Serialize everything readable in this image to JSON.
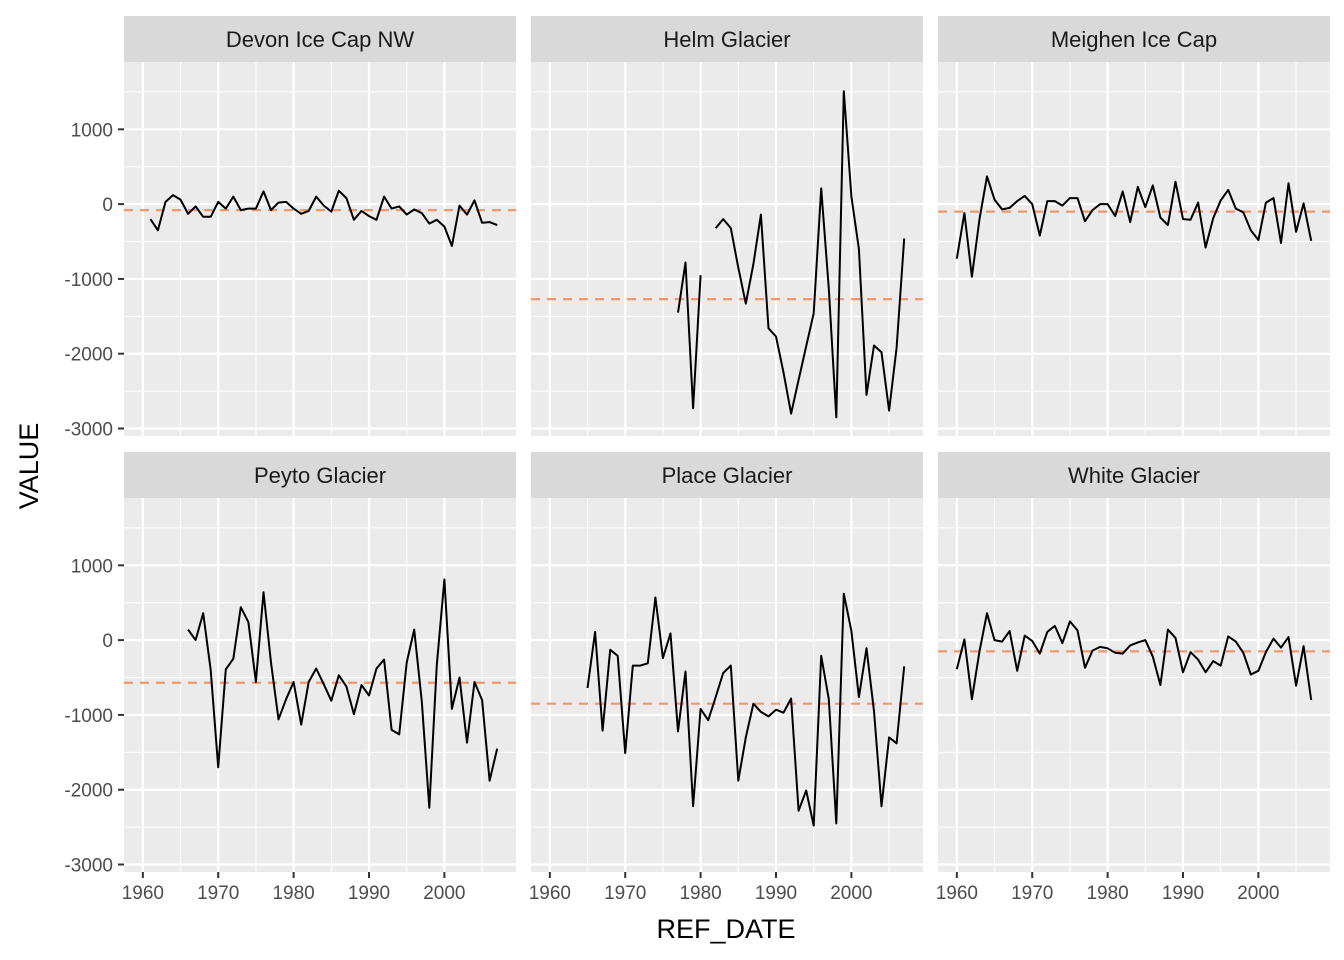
{
  "chart_data": {
    "type": "line",
    "xlabel": "REF_DATE",
    "ylabel": "VALUE",
    "xlim": [
      1957.5,
      2009.5
    ],
    "ylim": [
      -3100,
      1900
    ],
    "x_ticks": [
      1960,
      1970,
      1980,
      1990,
      2000
    ],
    "y_ticks": [
      1000,
      0,
      -1000,
      -2000,
      -3000
    ],
    "grid": true,
    "mean_line_color": "#f4956c",
    "line_color": "#000000",
    "panel_background": "#ebebeb",
    "strip_background": "#d9d9d9",
    "panels": [
      {
        "name": "Devon Ice Cap NW",
        "mean": -80,
        "series": [
          [
            1961,
            -200
          ],
          [
            1962,
            -350
          ],
          [
            1963,
            30
          ],
          [
            1964,
            120
          ],
          [
            1965,
            60
          ],
          [
            1966,
            -130
          ],
          [
            1967,
            -30
          ],
          [
            1968,
            -170
          ],
          [
            1969,
            -170
          ],
          [
            1970,
            30
          ],
          [
            1971,
            -60
          ],
          [
            1972,
            100
          ],
          [
            1973,
            -80
          ],
          [
            1974,
            -60
          ],
          [
            1975,
            -60
          ],
          [
            1976,
            170
          ],
          [
            1977,
            -80
          ],
          [
            1978,
            20
          ],
          [
            1979,
            30
          ],
          [
            1980,
            -60
          ],
          [
            1981,
            -130
          ],
          [
            1982,
            -90
          ],
          [
            1983,
            100
          ],
          [
            1984,
            -20
          ],
          [
            1985,
            -100
          ],
          [
            1986,
            180
          ],
          [
            1987,
            80
          ],
          [
            1988,
            -210
          ],
          [
            1989,
            -90
          ],
          [
            1990,
            -160
          ],
          [
            1991,
            -210
          ],
          [
            1992,
            100
          ],
          [
            1993,
            -60
          ],
          [
            1994,
            -30
          ],
          [
            1995,
            -140
          ],
          [
            1996,
            -70
          ],
          [
            1997,
            -120
          ],
          [
            1998,
            -260
          ],
          [
            1999,
            -210
          ],
          [
            2000,
            -300
          ],
          [
            2001,
            -560
          ],
          [
            2002,
            -20
          ],
          [
            2003,
            -140
          ],
          [
            2004,
            50
          ],
          [
            2005,
            -250
          ],
          [
            2006,
            -240
          ],
          [
            2007,
            -280
          ]
        ]
      },
      {
        "name": "Helm Glacier",
        "mean": -1270,
        "series": [
          [
            1977,
            -1450
          ],
          [
            1978,
            -780
          ],
          [
            1979,
            -2730
          ],
          [
            1980,
            -950
          ],
          null,
          [
            1982,
            -320
          ],
          [
            1983,
            -200
          ],
          [
            1984,
            -320
          ],
          [
            1985,
            -850
          ],
          [
            1986,
            -1330
          ],
          [
            1987,
            -800
          ],
          [
            1988,
            -140
          ],
          [
            1989,
            -1660
          ],
          [
            1990,
            -1770
          ],
          [
            1991,
            -2250
          ],
          [
            1992,
            -2800
          ],
          [
            1993,
            -2350
          ],
          [
            1994,
            -1900
          ],
          [
            1995,
            -1460
          ],
          [
            1996,
            210
          ],
          [
            1997,
            -1130
          ],
          [
            1998,
            -2850
          ],
          [
            1999,
            1510
          ],
          [
            2000,
            100
          ],
          [
            2001,
            -600
          ],
          [
            2002,
            -2550
          ],
          [
            2003,
            -1890
          ],
          [
            2004,
            -1980
          ],
          [
            2005,
            -2760
          ],
          [
            2006,
            -1920
          ],
          [
            2007,
            -460
          ]
        ]
      },
      {
        "name": "Meighen Ice Cap",
        "mean": -100,
        "series": [
          [
            1960,
            -730
          ],
          [
            1961,
            -120
          ],
          [
            1962,
            -970
          ],
          [
            1963,
            -200
          ],
          [
            1964,
            370
          ],
          [
            1965,
            60
          ],
          [
            1966,
            -70
          ],
          [
            1967,
            -50
          ],
          [
            1968,
            40
          ],
          [
            1969,
            110
          ],
          [
            1970,
            0
          ],
          [
            1971,
            -420
          ],
          [
            1972,
            40
          ],
          [
            1973,
            40
          ],
          [
            1974,
            -20
          ],
          [
            1975,
            80
          ],
          [
            1976,
            80
          ],
          [
            1977,
            -230
          ],
          [
            1978,
            -80
          ],
          [
            1979,
            0
          ],
          [
            1980,
            0
          ],
          [
            1981,
            -160
          ],
          [
            1982,
            170
          ],
          [
            1983,
            -240
          ],
          [
            1984,
            230
          ],
          [
            1985,
            -40
          ],
          [
            1986,
            250
          ],
          [
            1987,
            -180
          ],
          [
            1988,
            -280
          ],
          [
            1989,
            300
          ],
          [
            1990,
            -200
          ],
          [
            1991,
            -210
          ],
          [
            1992,
            20
          ],
          [
            1993,
            -580
          ],
          [
            1994,
            -190
          ],
          [
            1995,
            50
          ],
          [
            1996,
            190
          ],
          [
            1997,
            -60
          ],
          [
            1998,
            -110
          ],
          [
            1999,
            -350
          ],
          [
            2000,
            -480
          ],
          [
            2001,
            20
          ],
          [
            2002,
            80
          ],
          [
            2003,
            -520
          ],
          [
            2004,
            280
          ],
          [
            2005,
            -370
          ],
          [
            2006,
            10
          ],
          [
            2007,
            -490
          ]
        ]
      },
      {
        "name": "Peyto Glacier",
        "mean": -570,
        "series": [
          [
            1966,
            140
          ],
          [
            1967,
            0
          ],
          [
            1968,
            360
          ],
          [
            1969,
            -400
          ],
          [
            1970,
            -1700
          ],
          [
            1971,
            -390
          ],
          [
            1972,
            -250
          ],
          [
            1973,
            440
          ],
          [
            1974,
            240
          ],
          [
            1975,
            -560
          ],
          [
            1976,
            640
          ],
          [
            1977,
            -300
          ],
          [
            1978,
            -1060
          ],
          [
            1979,
            -790
          ],
          [
            1980,
            -560
          ],
          [
            1981,
            -1130
          ],
          [
            1982,
            -560
          ],
          [
            1983,
            -380
          ],
          [
            1984,
            -590
          ],
          [
            1985,
            -810
          ],
          [
            1986,
            -470
          ],
          [
            1987,
            -620
          ],
          [
            1988,
            -990
          ],
          [
            1989,
            -600
          ],
          [
            1990,
            -740
          ],
          [
            1991,
            -380
          ],
          [
            1992,
            -260
          ],
          [
            1993,
            -1200
          ],
          [
            1994,
            -1260
          ],
          [
            1995,
            -300
          ],
          [
            1996,
            140
          ],
          [
            1997,
            -820
          ],
          [
            1998,
            -2240
          ],
          [
            1999,
            -330
          ],
          [
            2000,
            810
          ],
          [
            2001,
            -920
          ],
          [
            2002,
            -500
          ],
          [
            2003,
            -1370
          ],
          [
            2004,
            -560
          ],
          [
            2005,
            -800
          ],
          [
            2006,
            -1880
          ],
          [
            2007,
            -1450
          ]
        ]
      },
      {
        "name": "Place Glacier",
        "mean": -850,
        "series": [
          [
            1965,
            -640
          ],
          [
            1966,
            110
          ],
          [
            1967,
            -1210
          ],
          [
            1968,
            -130
          ],
          [
            1969,
            -210
          ],
          [
            1970,
            -1510
          ],
          [
            1971,
            -340
          ],
          [
            1972,
            -340
          ],
          [
            1973,
            -310
          ],
          [
            1974,
            570
          ],
          [
            1975,
            -240
          ],
          [
            1976,
            90
          ],
          [
            1977,
            -1220
          ],
          [
            1978,
            -420
          ],
          [
            1979,
            -2220
          ],
          [
            1980,
            -920
          ],
          [
            1981,
            -1070
          ],
          [
            1982,
            -760
          ],
          [
            1983,
            -440
          ],
          [
            1984,
            -340
          ],
          [
            1985,
            -1880
          ],
          [
            1986,
            -1300
          ],
          [
            1987,
            -850
          ],
          [
            1988,
            -960
          ],
          [
            1989,
            -1020
          ],
          [
            1990,
            -930
          ],
          [
            1991,
            -970
          ],
          [
            1992,
            -780
          ],
          [
            1993,
            -2280
          ],
          [
            1994,
            -2010
          ],
          [
            1995,
            -2480
          ],
          [
            1996,
            -210
          ],
          [
            1997,
            -790
          ],
          [
            1998,
            -2450
          ],
          [
            1999,
            620
          ],
          [
            2000,
            120
          ],
          [
            2001,
            -760
          ],
          [
            2002,
            -110
          ],
          [
            2003,
            -950
          ],
          [
            2004,
            -2220
          ],
          [
            2005,
            -1300
          ],
          [
            2006,
            -1380
          ],
          [
            2007,
            -350
          ]
        ]
      },
      {
        "name": "White Glacier",
        "mean": -150,
        "series": [
          [
            1960,
            -390
          ],
          [
            1961,
            10
          ],
          [
            1962,
            -790
          ],
          [
            1963,
            -150
          ],
          [
            1964,
            360
          ],
          [
            1965,
            0
          ],
          [
            1966,
            -20
          ],
          [
            1967,
            120
          ],
          [
            1968,
            -410
          ],
          [
            1969,
            60
          ],
          [
            1970,
            -10
          ],
          [
            1971,
            -180
          ],
          [
            1972,
            110
          ],
          [
            1973,
            190
          ],
          [
            1974,
            -40
          ],
          [
            1975,
            250
          ],
          [
            1976,
            130
          ],
          [
            1977,
            -370
          ],
          [
            1978,
            -140
          ],
          [
            1979,
            -90
          ],
          [
            1980,
            -110
          ],
          [
            1981,
            -170
          ],
          [
            1982,
            -180
          ],
          [
            1983,
            -70
          ],
          [
            1984,
            -30
          ],
          [
            1985,
            0
          ],
          [
            1986,
            -220
          ],
          [
            1987,
            -600
          ],
          [
            1988,
            140
          ],
          [
            1989,
            30
          ],
          [
            1990,
            -430
          ],
          [
            1991,
            -160
          ],
          [
            1992,
            -260
          ],
          [
            1993,
            -430
          ],
          [
            1994,
            -280
          ],
          [
            1995,
            -340
          ],
          [
            1996,
            50
          ],
          [
            1997,
            -20
          ],
          [
            1998,
            -170
          ],
          [
            1999,
            -460
          ],
          [
            2000,
            -410
          ],
          [
            2001,
            -160
          ],
          [
            2002,
            20
          ],
          [
            2003,
            -100
          ],
          [
            2004,
            40
          ],
          [
            2005,
            -610
          ],
          [
            2006,
            -80
          ],
          [
            2007,
            -800
          ]
        ]
      }
    ]
  }
}
